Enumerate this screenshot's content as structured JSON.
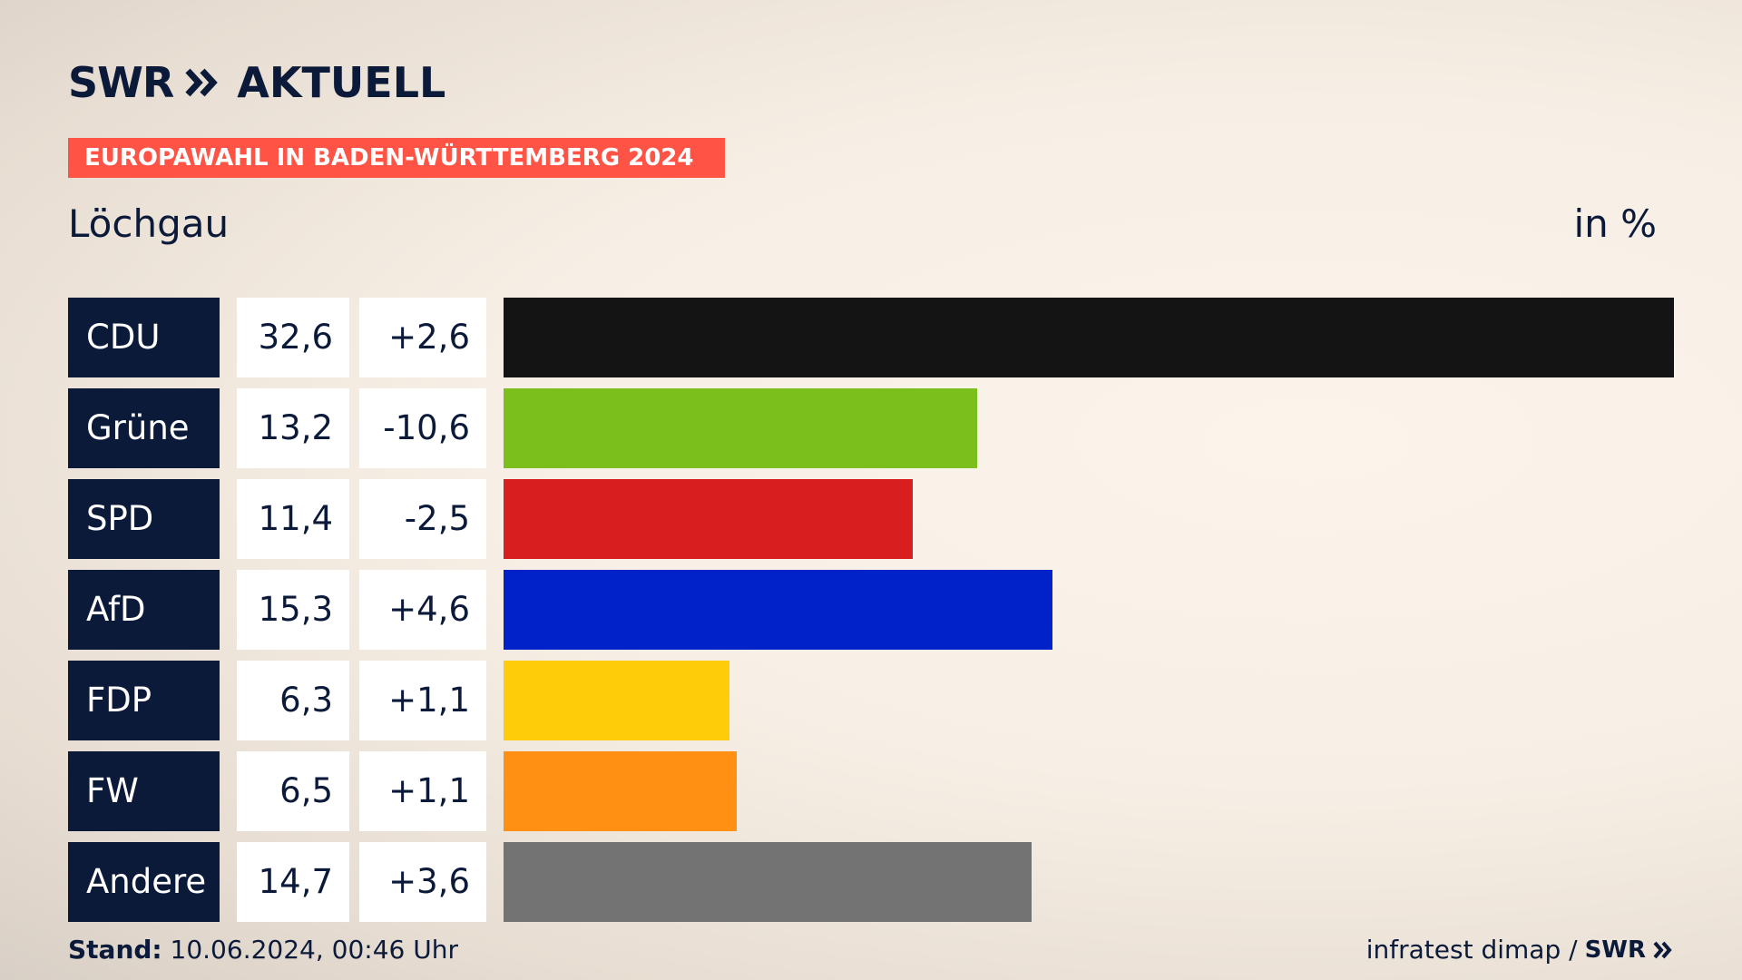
{
  "header": {
    "logo_brand": "SWR",
    "logo_product": "AKTUELL",
    "banner": "EUROPAWAHL IN BADEN-WÜRTTEMBERG 2024",
    "place": "Löchgau",
    "unit": "in %"
  },
  "colors": {
    "navy": "#0c1a3a",
    "banner": "#ff5445"
  },
  "chart_data": {
    "type": "bar",
    "orientation": "horizontal",
    "unit": "in %",
    "categories": [
      "CDU",
      "Grüne",
      "SPD",
      "AfD",
      "FDP",
      "FW",
      "Andere"
    ],
    "values": [
      32.6,
      13.2,
      11.4,
      15.3,
      6.3,
      6.5,
      14.7
    ],
    "value_labels": [
      "32,6",
      "13,2",
      "11,4",
      "15,3",
      "6,3",
      "6,5",
      "14,7"
    ],
    "changes": [
      "+2,6",
      "-10,6",
      "-2,5",
      "+4,6",
      "+1,1",
      "+1,1",
      "+3,6"
    ],
    "bar_colors": [
      "#141414",
      "#7abf1c",
      "#d81e1e",
      "#0022c8",
      "#ffcc0a",
      "#ff9014",
      "#737373"
    ],
    "xlim": [
      0,
      32.6
    ]
  },
  "footer": {
    "stand_label": "Stand:",
    "stand_value": "10.06.2024, 00:46 Uhr",
    "source": "infratest dimap /",
    "source_brand": "SWR"
  }
}
